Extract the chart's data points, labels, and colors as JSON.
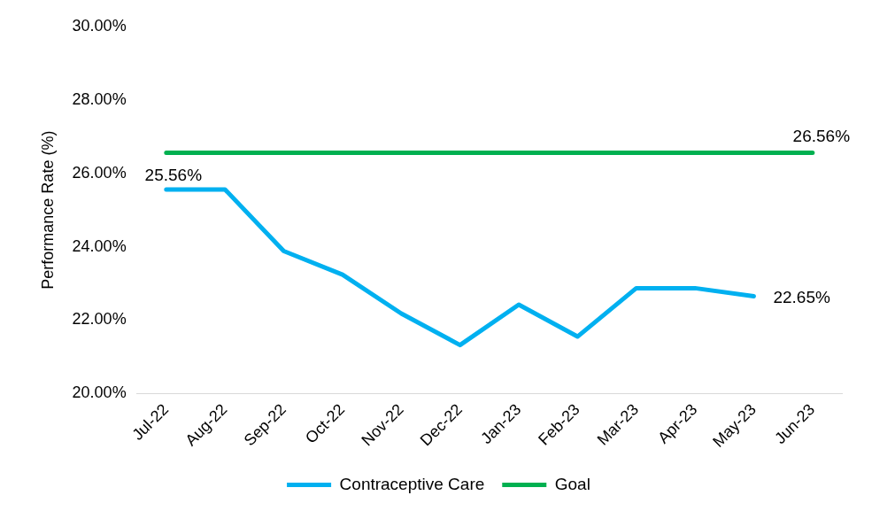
{
  "chart_data": {
    "type": "line",
    "ylabel": "Performance Rate (%)",
    "categories": [
      "Jul-22",
      "Aug-22",
      "Sep-22",
      "Oct-22",
      "Nov-22",
      "Dec-22",
      "Jan-23",
      "Feb-23",
      "Mar-23",
      "Apr-23",
      "May-23",
      "Jun-23"
    ],
    "series": [
      {
        "name": "Contraceptive Care",
        "color": "#00b0f0",
        "values": [
          25.56,
          25.56,
          23.88,
          23.24,
          22.18,
          21.32,
          22.42,
          21.55,
          22.87,
          22.87,
          22.65,
          null
        ],
        "value_labels": [
          "25.56%",
          null,
          null,
          null,
          null,
          null,
          null,
          null,
          null,
          null,
          "22.65%",
          null
        ]
      },
      {
        "name": "Goal",
        "color": "#00b050",
        "values": [
          26.56,
          26.56,
          26.56,
          26.56,
          26.56,
          26.56,
          26.56,
          26.56,
          26.56,
          26.56,
          26.56,
          26.56
        ],
        "value_labels": [
          null,
          null,
          null,
          null,
          null,
          null,
          null,
          null,
          null,
          null,
          null,
          "26.56%"
        ]
      }
    ],
    "ylim": [
      20,
      30
    ],
    "yticks": [
      {
        "value": 20,
        "label": "20.00%"
      },
      {
        "value": 22,
        "label": "22.00%"
      },
      {
        "value": 24,
        "label": "24.00%"
      },
      {
        "value": 26,
        "label": "26.00%"
      },
      {
        "value": 28,
        "label": "28.00%"
      },
      {
        "value": 30,
        "label": "30.00%"
      }
    ],
    "grid": false,
    "legend": "bottom",
    "marker": "none",
    "line_style": "solid"
  }
}
